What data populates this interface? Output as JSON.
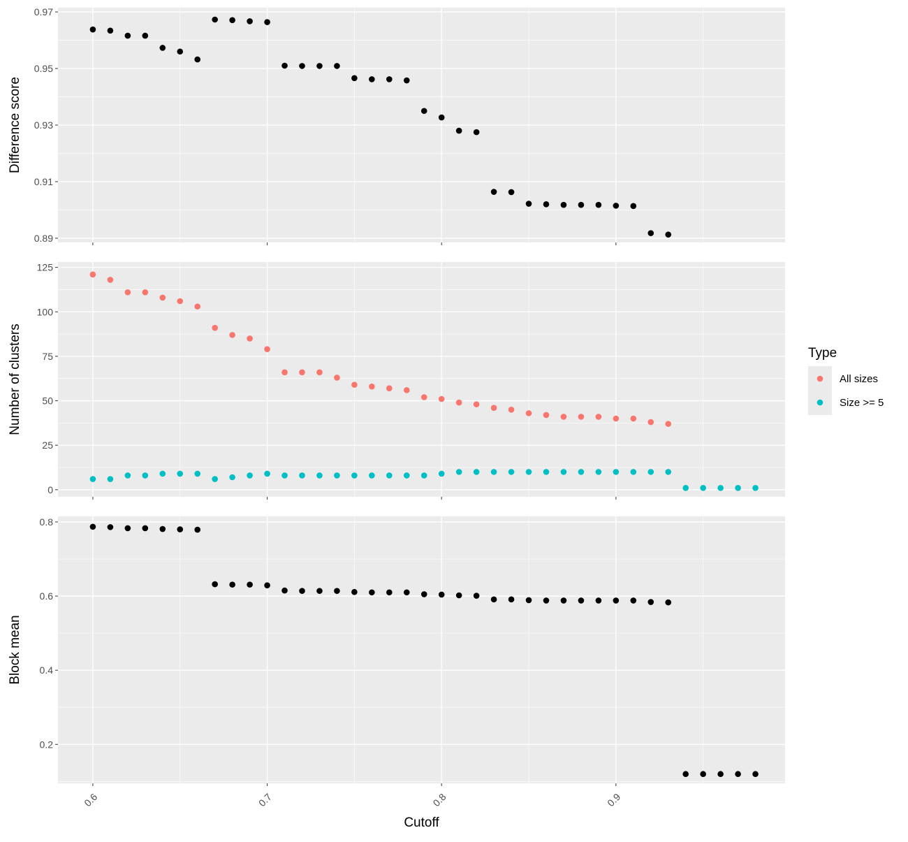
{
  "chart_data": {
    "type": "scatter",
    "xlabel": "Cutoff",
    "x_ticks": [
      "0.6",
      "0.7",
      "0.8",
      "0.9"
    ],
    "xlim": [
      0.58,
      0.997
    ],
    "panels": [
      {
        "ylabel": "Difference score",
        "ylim": [
          0.8885,
          0.9715
        ],
        "y_ticks": [
          "0.89",
          "0.91",
          "0.93",
          "0.95",
          "0.97"
        ],
        "y_tick_values": [
          0.89,
          0.91,
          0.93,
          0.95,
          0.97
        ],
        "series": [
          {
            "color": "#000000",
            "x": [
              0.6,
              0.61,
              0.62,
              0.63,
              0.64,
              0.65,
              0.66,
              0.67,
              0.68,
              0.69,
              0.7,
              0.71,
              0.72,
              0.73,
              0.74,
              0.75,
              0.76,
              0.77,
              0.78,
              0.79,
              0.8,
              0.81,
              0.82,
              0.83,
              0.84,
              0.85,
              0.86,
              0.87,
              0.88,
              0.89,
              0.9,
              0.91,
              0.92,
              0.93
            ],
            "y": [
              0.9638,
              0.9634,
              0.9616,
              0.9616,
              0.9573,
              0.956,
              0.9532,
              0.9673,
              0.9671,
              0.9667,
              0.9664,
              0.951,
              0.9509,
              0.9509,
              0.9509,
              0.9466,
              0.9462,
              0.9462,
              0.9458,
              0.935,
              0.9327,
              0.928,
              0.9275,
              0.9064,
              0.9063,
              0.9022,
              0.902,
              0.9018,
              0.9018,
              0.9018,
              0.9015,
              0.9014,
              0.8918,
              0.8913
            ]
          }
        ]
      },
      {
        "ylabel": "Number of clusters",
        "ylim": [
          -4,
          128
        ],
        "y_ticks": [
          "0",
          "25",
          "50",
          "75",
          "100",
          "125"
        ],
        "y_tick_values": [
          0,
          25,
          50,
          75,
          100,
          125
        ],
        "series": [
          {
            "name": "All sizes",
            "color": "#F8766D",
            "x": [
              0.6,
              0.61,
              0.62,
              0.63,
              0.64,
              0.65,
              0.66,
              0.67,
              0.68,
              0.69,
              0.7,
              0.71,
              0.72,
              0.73,
              0.74,
              0.75,
              0.76,
              0.77,
              0.78,
              0.79,
              0.8,
              0.81,
              0.82,
              0.83,
              0.84,
              0.85,
              0.86,
              0.87,
              0.88,
              0.89,
              0.9,
              0.91,
              0.92,
              0.93
            ],
            "y": [
              121,
              118,
              111,
              111,
              108,
              106,
              103,
              91,
              87,
              85,
              79,
              66,
              66,
              66,
              63,
              59,
              58,
              57,
              56,
              52,
              51,
              49,
              48,
              46,
              45,
              43,
              42,
              41,
              41,
              41,
              40,
              40,
              38,
              37
            ]
          },
          {
            "name": "Size >= 5",
            "color": "#00BFC4",
            "x": [
              0.6,
              0.61,
              0.62,
              0.63,
              0.64,
              0.65,
              0.66,
              0.67,
              0.68,
              0.69,
              0.7,
              0.71,
              0.72,
              0.73,
              0.74,
              0.75,
              0.76,
              0.77,
              0.78,
              0.79,
              0.8,
              0.81,
              0.82,
              0.83,
              0.84,
              0.85,
              0.86,
              0.87,
              0.88,
              0.89,
              0.9,
              0.91,
              0.92,
              0.93,
              0.94,
              0.95,
              0.96,
              0.97,
              0.98
            ],
            "y": [
              6,
              6,
              8,
              8,
              9,
              9,
              9,
              6,
              7,
              8,
              9,
              8,
              8,
              8,
              8,
              8,
              8,
              8,
              8,
              8,
              9,
              10,
              10,
              10,
              10,
              10,
              10,
              10,
              10,
              10,
              10,
              10,
              10,
              10,
              1,
              1,
              1,
              1,
              1
            ]
          }
        ]
      },
      {
        "ylabel": "Block mean",
        "ylim": [
          0.095,
          0.815
        ],
        "y_ticks": [
          "0.2",
          "0.4",
          "0.6",
          "0.8"
        ],
        "y_tick_values": [
          0.2,
          0.4,
          0.6,
          0.8
        ],
        "series": [
          {
            "color": "#000000",
            "x": [
              0.6,
              0.61,
              0.62,
              0.63,
              0.64,
              0.65,
              0.66,
              0.67,
              0.68,
              0.69,
              0.7,
              0.71,
              0.72,
              0.73,
              0.74,
              0.75,
              0.76,
              0.77,
              0.78,
              0.79,
              0.8,
              0.81,
              0.82,
              0.83,
              0.84,
              0.85,
              0.86,
              0.87,
              0.88,
              0.89,
              0.9,
              0.91,
              0.92,
              0.93,
              0.94,
              0.95,
              0.96,
              0.97,
              0.98
            ],
            "y": [
              0.787,
              0.786,
              0.783,
              0.783,
              0.781,
              0.78,
              0.779,
              0.632,
              0.631,
              0.631,
              0.629,
              0.615,
              0.614,
              0.614,
              0.614,
              0.611,
              0.61,
              0.61,
              0.61,
              0.605,
              0.604,
              0.602,
              0.601,
              0.591,
              0.591,
              0.589,
              0.588,
              0.588,
              0.588,
              0.588,
              0.588,
              0.588,
              0.584,
              0.583,
              0.12,
              0.12,
              0.12,
              0.12,
              0.12
            ]
          }
        ]
      }
    ],
    "legend": {
      "title": "Type",
      "position": "right",
      "items": [
        {
          "label": "All sizes",
          "color": "#F8766D"
        },
        {
          "label": "Size >= 5",
          "color": "#00BFC4"
        }
      ]
    },
    "grid": true,
    "panel_background": "#EBEBEB",
    "gridline_color": "#FFFFFF"
  }
}
